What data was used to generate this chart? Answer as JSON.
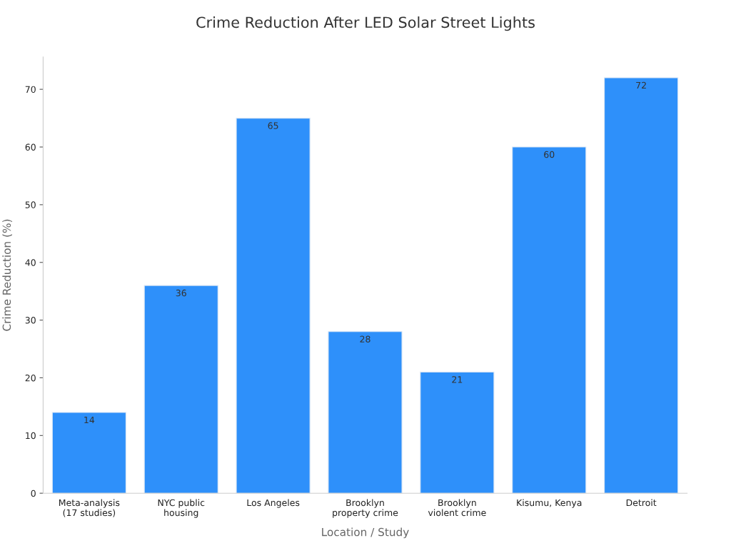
{
  "chart_data": {
    "type": "bar",
    "title": "Crime Reduction After LED Solar Street Lights",
    "xlabel": "Location / Study",
    "ylabel": "Crime Reduction (%)",
    "categories": [
      "Meta-analysis\n(17 studies)",
      "NYC public\nhousing",
      "Los Angeles",
      "Brooklyn\nproperty crime",
      "Brooklyn\nviolent crime",
      "Kisumu, Kenya",
      "Detroit"
    ],
    "values": [
      14,
      36,
      65,
      28,
      21,
      60,
      72
    ],
    "color": "#2e90fa",
    "ylim": [
      0,
      75.6
    ],
    "yticks": [
      0,
      10,
      20,
      30,
      40,
      50,
      60,
      70
    ],
    "grid": false,
    "data_labels": true
  }
}
